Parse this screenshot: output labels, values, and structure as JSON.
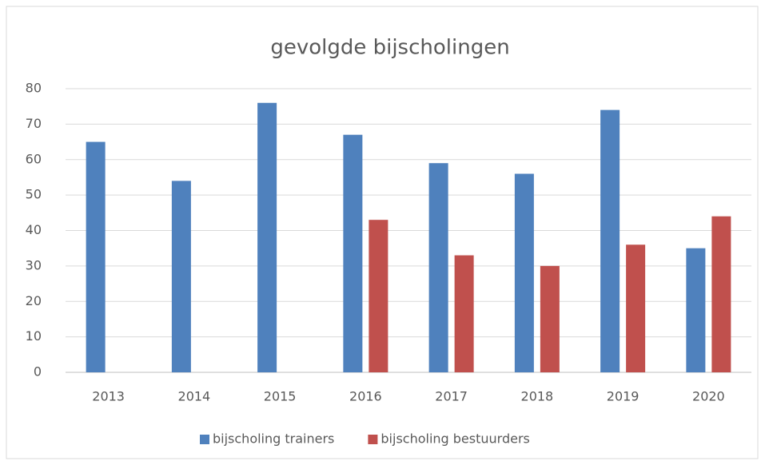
{
  "chart_data": {
    "type": "bar",
    "title": "gevolgde bijscholingen",
    "categories": [
      "2013",
      "2014",
      "2015",
      "2016",
      "2017",
      "2018",
      "2019",
      "2020"
    ],
    "series": [
      {
        "name": "bijscholing trainers",
        "color": "#4f81bd",
        "values": [
          65,
          54,
          76,
          67,
          59,
          56,
          74,
          35
        ]
      },
      {
        "name": "bijscholing bestuurders",
        "color": "#c0504d",
        "values": [
          null,
          null,
          null,
          43,
          33,
          30,
          36,
          44
        ]
      }
    ],
    "ylim": [
      0,
      80
    ],
    "yticks": [
      0,
      10,
      20,
      30,
      40,
      50,
      60,
      70,
      80
    ],
    "grid": true,
    "legend": "bottom"
  }
}
